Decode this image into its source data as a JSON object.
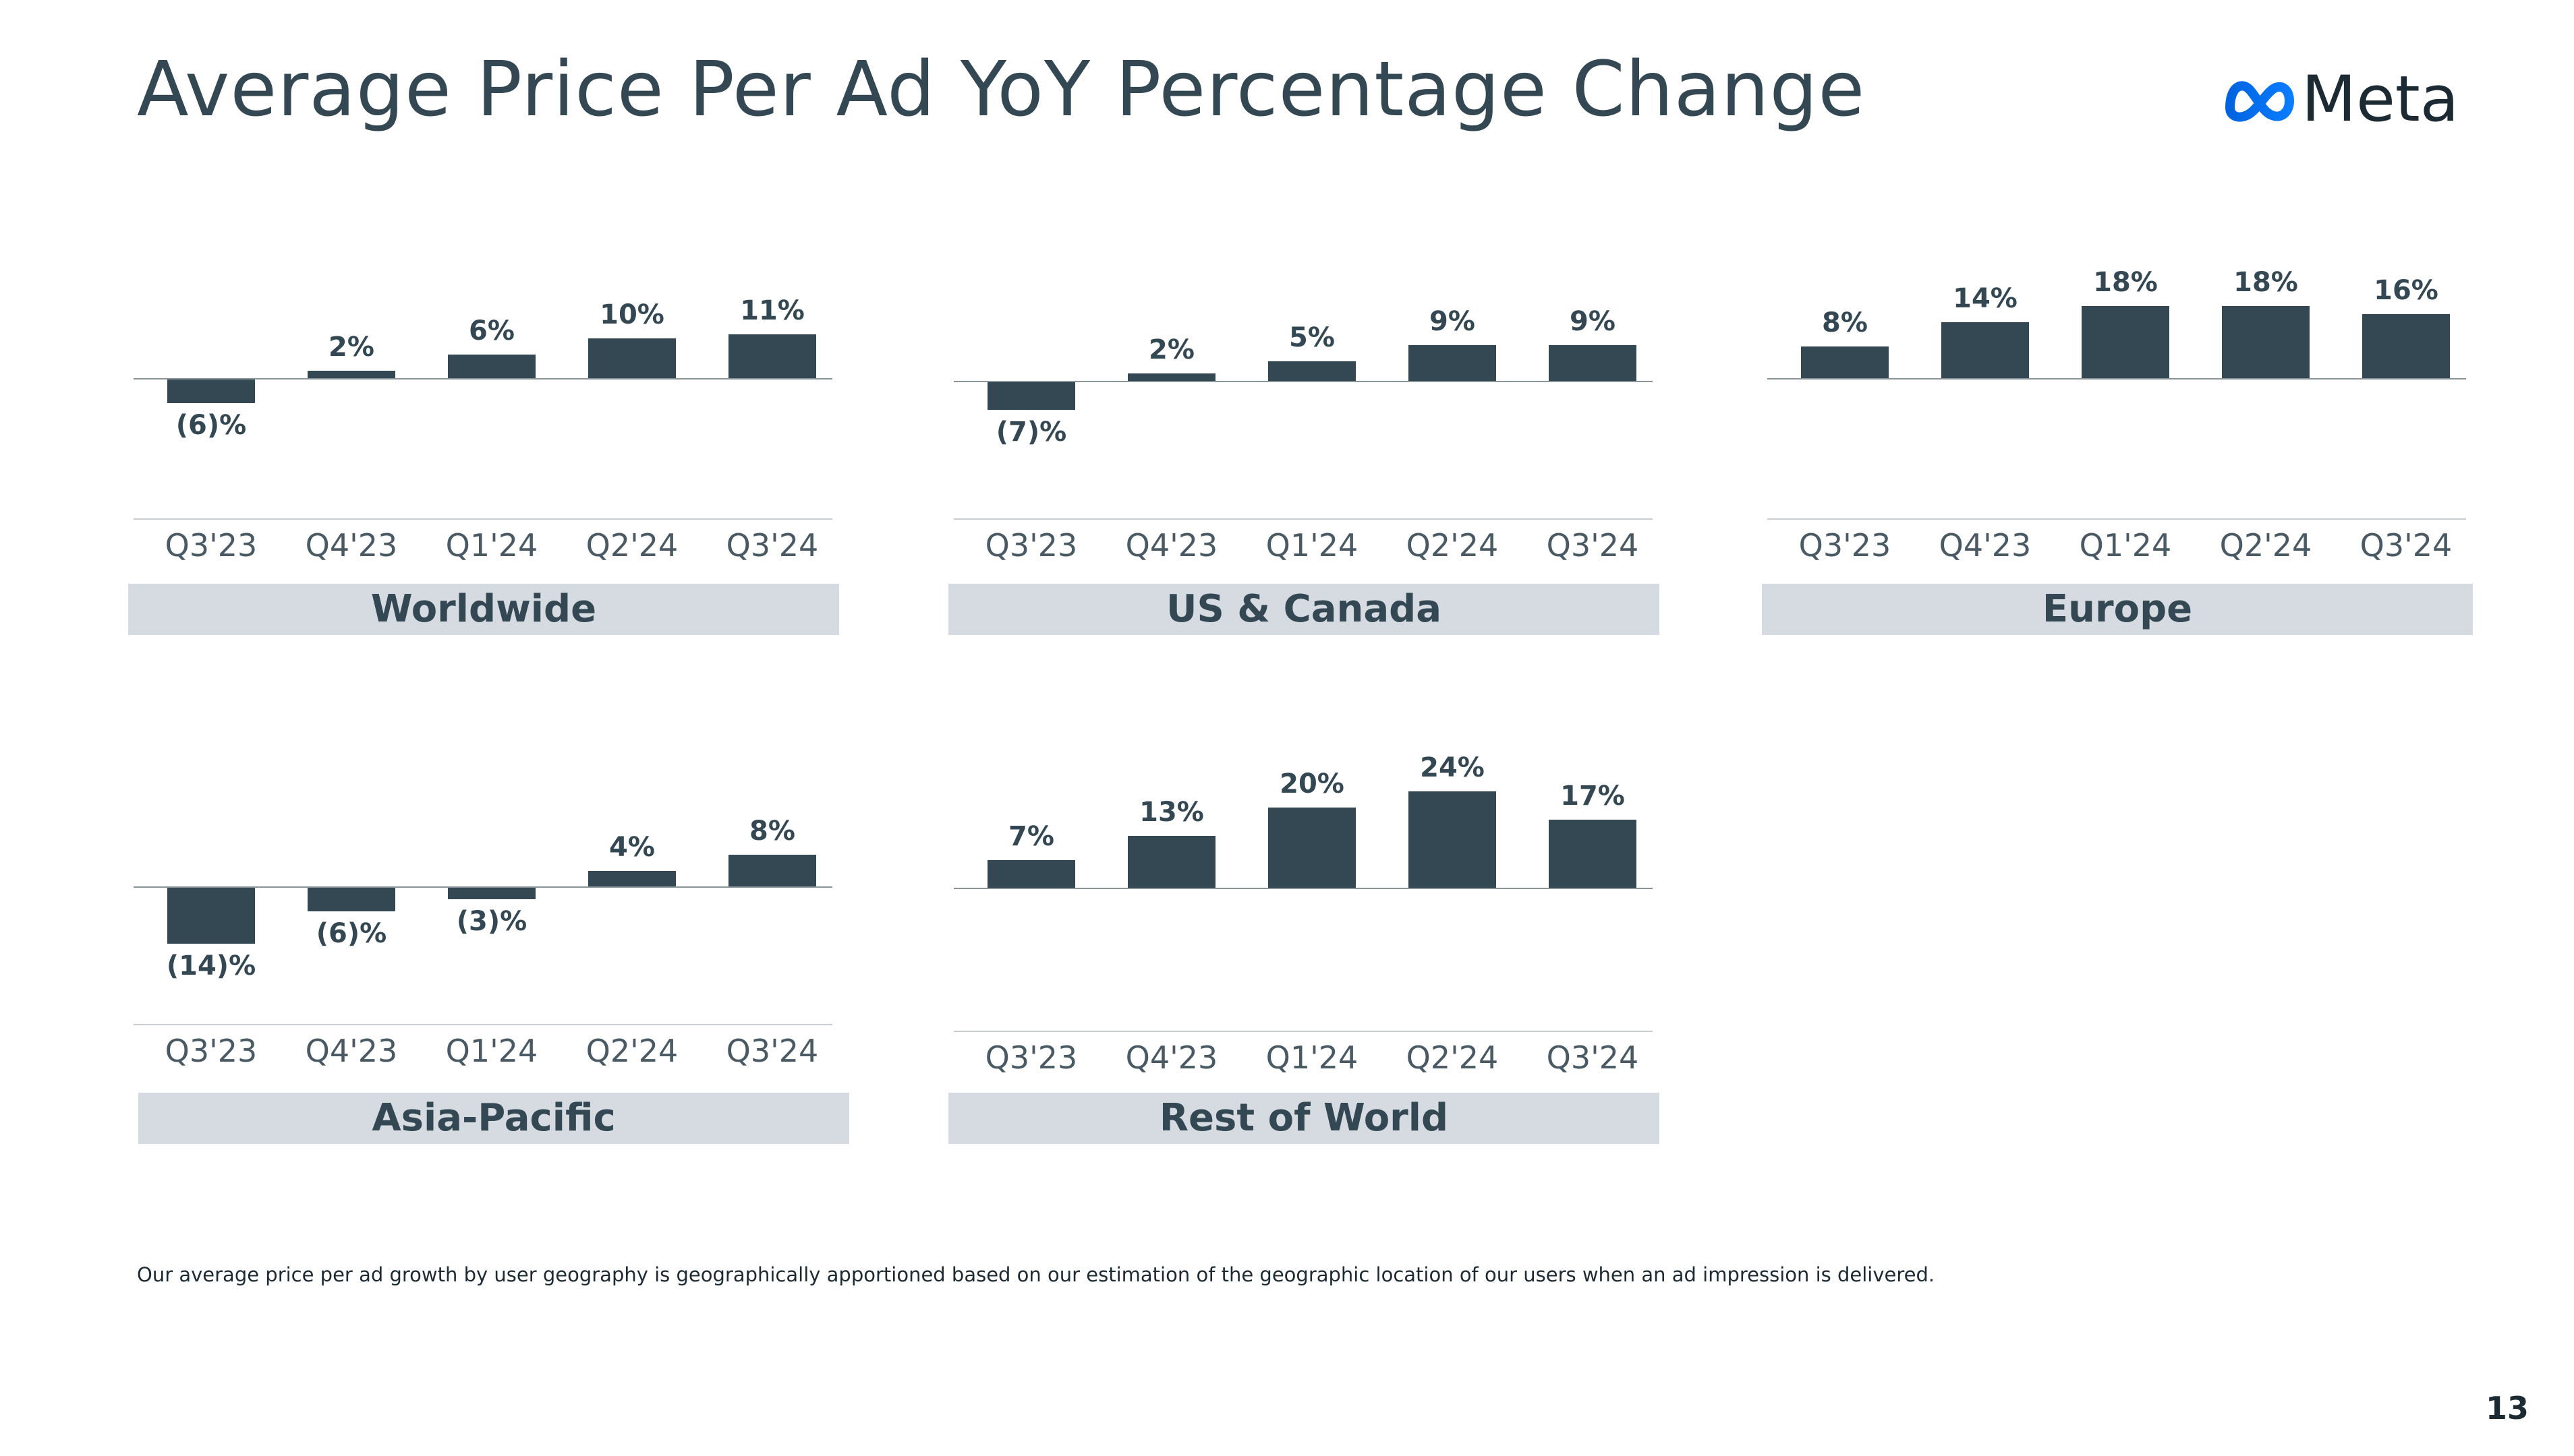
{
  "title": "Average Price Per Ad YoY Percentage Change",
  "logo": {
    "text": "Meta",
    "icon": "meta-infinity-logo"
  },
  "colors": {
    "bar": "#344854",
    "region_bg": "#d5dbe1",
    "axis": "#8a949b",
    "text": "#344854",
    "logo_blue": "#0668e1"
  },
  "chart_data": [
    {
      "type": "bar",
      "title": "Worldwide",
      "categories": [
        "Q3'23",
        "Q4'23",
        "Q1'24",
        "Q2'24",
        "Q3'24"
      ],
      "values": [
        -6,
        2,
        6,
        10,
        11
      ],
      "labels": [
        "(6)%",
        "2%",
        "6%",
        "10%",
        "11%"
      ]
    },
    {
      "type": "bar",
      "title": "US & Canada",
      "categories": [
        "Q3'23",
        "Q4'23",
        "Q1'24",
        "Q2'24",
        "Q3'24"
      ],
      "values": [
        -7,
        2,
        5,
        9,
        9
      ],
      "labels": [
        "(7)%",
        "2%",
        "5%",
        "9%",
        "9%"
      ]
    },
    {
      "type": "bar",
      "title": "Europe",
      "categories": [
        "Q3'23",
        "Q4'23",
        "Q1'24",
        "Q2'24",
        "Q3'24"
      ],
      "values": [
        8,
        14,
        18,
        18,
        16
      ],
      "labels": [
        "8%",
        "14%",
        "18%",
        "18%",
        "16%"
      ]
    },
    {
      "type": "bar",
      "title": "Asia-Pacific",
      "categories": [
        "Q3'23",
        "Q4'23",
        "Q1'24",
        "Q2'24",
        "Q3'24"
      ],
      "values": [
        -14,
        -6,
        -3,
        4,
        8
      ],
      "labels": [
        "(14)%",
        "(6)%",
        "(3)%",
        "4%",
        "8%"
      ]
    },
    {
      "type": "bar",
      "title": "Rest of World",
      "categories": [
        "Q3'23",
        "Q4'23",
        "Q1'24",
        "Q2'24",
        "Q3'24"
      ],
      "values": [
        7,
        13,
        20,
        24,
        17
      ],
      "labels": [
        "7%",
        "13%",
        "20%",
        "24%",
        "17%"
      ]
    }
  ],
  "footnote": "Our average price per ad growth by user geography is geographically apportioned based on our estimation of the geographic location of our users when an ad impression is delivered.",
  "page_number": "13"
}
